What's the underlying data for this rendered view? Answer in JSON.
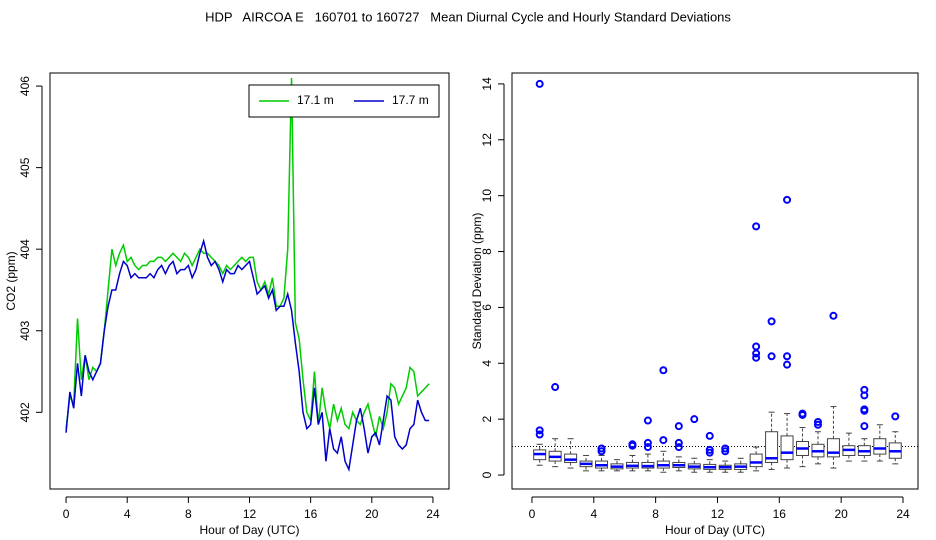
{
  "title": "HDP   AIRCOA E   160701 to 160727   Mean Diurnal Cycle and Hourly Standard Deviations",
  "chart_data": [
    {
      "type": "line",
      "xlabel": "Hour of Day (UTC)",
      "ylabel": "CO2 (ppm)",
      "xlim": [
        -1.05,
        25.05
      ],
      "ylim": [
        401.06,
        406.16
      ],
      "xticks": [
        0,
        4,
        8,
        12,
        16,
        20,
        24
      ],
      "yticks": [
        402,
        403,
        404,
        405,
        406
      ],
      "legend": "top-right",
      "x": [
        0,
        0.25,
        0.5,
        0.75,
        1,
        1.25,
        1.5,
        1.75,
        2,
        2.25,
        2.5,
        2.75,
        3,
        3.25,
        3.5,
        3.75,
        4,
        4.25,
        4.5,
        4.75,
        5,
        5.25,
        5.5,
        5.75,
        6,
        6.25,
        6.5,
        6.75,
        7,
        7.25,
        7.5,
        7.75,
        8,
        8.25,
        8.5,
        8.75,
        9,
        9.25,
        9.5,
        9.75,
        10,
        10.25,
        10.5,
        10.75,
        11,
        11.25,
        11.5,
        11.75,
        12,
        12.25,
        12.5,
        12.75,
        13,
        13.25,
        13.5,
        13.75,
        14,
        14.25,
        14.5,
        14.75,
        15,
        15.25,
        15.5,
        15.75,
        16,
        16.25,
        16.5,
        16.75,
        17,
        17.25,
        17.5,
        17.75,
        18,
        18.25,
        18.5,
        18.75,
        19,
        19.25,
        19.5,
        19.75,
        20,
        20.25,
        20.5,
        20.75,
        21,
        21.25,
        21.5,
        21.75,
        22,
        22.25,
        22.5,
        22.75,
        23,
        23.25,
        23.5,
        23.75
      ],
      "series": [
        {
          "name": "17.1 m",
          "color": "#00cc00",
          "values": [
            401.8,
            402.2,
            402.1,
            403.15,
            402.4,
            402.7,
            402.4,
            402.55,
            402.5,
            402.6,
            403.0,
            403.5,
            404.0,
            403.8,
            403.95,
            404.05,
            403.85,
            403.9,
            403.8,
            403.75,
            403.8,
            403.8,
            403.85,
            403.85,
            403.9,
            403.9,
            403.85,
            403.9,
            403.95,
            403.9,
            403.85,
            403.95,
            403.9,
            403.8,
            403.9,
            404.0,
            403.95,
            403.95,
            403.9,
            403.85,
            403.8,
            403.7,
            403.8,
            403.75,
            403.8,
            403.85,
            403.9,
            403.85,
            403.9,
            403.9,
            403.6,
            403.5,
            403.6,
            403.45,
            403.65,
            403.3,
            403.3,
            403.4,
            404.0,
            406.1,
            403.1,
            402.9,
            402.4,
            402.0,
            401.9,
            402.5,
            401.85,
            402.3,
            402.0,
            401.8,
            402.1,
            401.9,
            402.05,
            401.85,
            401.8,
            402.0,
            401.9,
            401.85,
            402.0,
            402.1,
            401.9,
            401.7,
            401.95,
            401.8,
            402.0,
            402.35,
            402.3,
            402.1,
            402.2,
            402.3,
            402.55,
            402.5,
            402.2,
            402.25,
            402.3,
            402.35
          ]
        },
        {
          "name": "17.7 m",
          "color": "#0000cc",
          "values": [
            401.75,
            402.25,
            402.05,
            402.6,
            402.2,
            402.7,
            402.5,
            402.4,
            402.5,
            402.6,
            403.0,
            403.3,
            403.5,
            403.5,
            403.7,
            403.85,
            403.8,
            403.65,
            403.7,
            403.65,
            403.65,
            403.65,
            403.7,
            403.65,
            403.75,
            403.8,
            403.7,
            403.8,
            403.85,
            403.7,
            403.75,
            403.75,
            403.8,
            403.65,
            403.75,
            403.95,
            404.1,
            403.9,
            403.8,
            403.85,
            403.75,
            403.6,
            403.75,
            403.7,
            403.7,
            403.8,
            403.75,
            403.8,
            403.85,
            403.65,
            403.45,
            403.5,
            403.55,
            403.4,
            403.5,
            403.25,
            403.3,
            403.3,
            403.45,
            403.25,
            402.85,
            402.5,
            402.0,
            401.8,
            401.85,
            402.3,
            401.85,
            402.0,
            401.4,
            401.8,
            401.55,
            401.5,
            401.7,
            401.4,
            401.3,
            401.6,
            401.9,
            402.05,
            401.8,
            401.5,
            401.7,
            401.75,
            401.6,
            401.9,
            402.2,
            402.15,
            401.7,
            401.6,
            401.55,
            401.6,
            401.8,
            401.85,
            402.15,
            402.0,
            401.9,
            401.9
          ]
        }
      ]
    },
    {
      "type": "box",
      "xlabel": "Hour of Day (UTC)",
      "ylabel": "Standard Deviation (ppm)",
      "xlim": [
        -1.29,
        24.97
      ],
      "ylim": [
        -0.5,
        14.39
      ],
      "xticks": [
        0,
        4,
        8,
        12,
        16,
        20,
        24
      ],
      "yticks": [
        0,
        2,
        4,
        6,
        8,
        10,
        12,
        14
      ],
      "color": "#0000ff",
      "edgecolor": "#444444",
      "hline": 1.02,
      "boxes": [
        {
          "x": 0.5,
          "whislo": 0.35,
          "q1": 0.55,
          "med": 0.75,
          "q3": 0.9,
          "whishi": 1.1,
          "fliers": [
            1.45,
            1.6,
            14.0
          ]
        },
        {
          "x": 1.5,
          "whislo": 0.3,
          "q1": 0.5,
          "med": 0.65,
          "q3": 0.85,
          "whishi": 1.3,
          "fliers": [
            3.15
          ]
        },
        {
          "x": 2.5,
          "whislo": 0.25,
          "q1": 0.45,
          "med": 0.55,
          "q3": 0.75,
          "whishi": 1.3,
          "fliers": []
        },
        {
          "x": 3.5,
          "whislo": 0.15,
          "q1": 0.3,
          "med": 0.4,
          "q3": 0.5,
          "whishi": 0.7,
          "fliers": []
        },
        {
          "x": 4.5,
          "whislo": 0.15,
          "q1": 0.25,
          "med": 0.35,
          "q3": 0.5,
          "whishi": 0.7,
          "fliers": [
            0.85,
            0.95
          ]
        },
        {
          "x": 5.5,
          "whislo": 0.15,
          "q1": 0.22,
          "med": 0.3,
          "q3": 0.4,
          "whishi": 0.55,
          "fliers": []
        },
        {
          "x": 6.5,
          "whislo": 0.15,
          "q1": 0.25,
          "med": 0.33,
          "q3": 0.45,
          "whishi": 0.7,
          "fliers": [
            1.05,
            1.1
          ]
        },
        {
          "x": 7.5,
          "whislo": 0.15,
          "q1": 0.25,
          "med": 0.32,
          "q3": 0.45,
          "whishi": 0.75,
          "fliers": [
            1.0,
            1.15,
            1.95
          ]
        },
        {
          "x": 8.5,
          "whislo": 0.1,
          "q1": 0.25,
          "med": 0.35,
          "q3": 0.5,
          "whishi": 0.85,
          "fliers": [
            1.25,
            3.75
          ]
        },
        {
          "x": 9.5,
          "whislo": 0.15,
          "q1": 0.27,
          "med": 0.35,
          "q3": 0.45,
          "whishi": 0.65,
          "fliers": [
            1.0,
            1.15,
            1.75
          ]
        },
        {
          "x": 10.5,
          "whislo": 0.1,
          "q1": 0.22,
          "med": 0.3,
          "q3": 0.4,
          "whishi": 0.6,
          "fliers": [
            2.0
          ]
        },
        {
          "x": 11.5,
          "whislo": 0.1,
          "q1": 0.2,
          "med": 0.28,
          "q3": 0.38,
          "whishi": 0.55,
          "fliers": [
            0.8,
            0.9,
            1.4
          ]
        },
        {
          "x": 12.5,
          "whislo": 0.1,
          "q1": 0.2,
          "med": 0.28,
          "q3": 0.35,
          "whishi": 0.5,
          "fliers": [
            0.85,
            0.95
          ]
        },
        {
          "x": 13.5,
          "whislo": 0.1,
          "q1": 0.2,
          "med": 0.3,
          "q3": 0.4,
          "whishi": 0.6,
          "fliers": []
        },
        {
          "x": 14.5,
          "whislo": 0.15,
          "q1": 0.3,
          "med": 0.45,
          "q3": 0.75,
          "whishi": 1.0,
          "fliers": [
            4.2,
            4.35,
            4.6,
            8.9
          ]
        },
        {
          "x": 15.5,
          "whislo": 0.2,
          "q1": 0.45,
          "med": 0.6,
          "q3": 1.55,
          "whishi": 2.25,
          "fliers": [
            4.25,
            5.5
          ]
        },
        {
          "x": 16.5,
          "whislo": 0.25,
          "q1": 0.55,
          "med": 0.8,
          "q3": 1.4,
          "whishi": 2.2,
          "fliers": [
            3.95,
            4.25,
            9.85
          ]
        },
        {
          "x": 17.5,
          "whislo": 0.3,
          "q1": 0.7,
          "med": 0.95,
          "q3": 1.2,
          "whishi": 1.7,
          "fliers": [
            2.15,
            2.2
          ]
        },
        {
          "x": 18.5,
          "whislo": 0.4,
          "q1": 0.65,
          "med": 0.85,
          "q3": 1.1,
          "whishi": 1.55,
          "fliers": [
            1.8,
            1.9
          ]
        },
        {
          "x": 19.5,
          "whislo": 0.25,
          "q1": 0.65,
          "med": 0.8,
          "q3": 1.3,
          "whishi": 2.45,
          "fliers": [
            5.7
          ]
        },
        {
          "x": 20.5,
          "whislo": 0.5,
          "q1": 0.7,
          "med": 0.9,
          "q3": 1.05,
          "whishi": 1.5,
          "fliers": []
        },
        {
          "x": 21.5,
          "whislo": 0.5,
          "q1": 0.7,
          "med": 0.85,
          "q3": 1.05,
          "whishi": 1.3,
          "fliers": [
            1.75,
            2.3,
            2.35,
            2.85,
            3.05
          ]
        },
        {
          "x": 22.5,
          "whislo": 0.5,
          "q1": 0.75,
          "med": 0.95,
          "q3": 1.3,
          "whishi": 1.8,
          "fliers": []
        },
        {
          "x": 23.5,
          "whislo": 0.4,
          "q1": 0.6,
          "med": 0.85,
          "q3": 1.15,
          "whishi": 1.55,
          "fliers": [
            2.1
          ]
        }
      ]
    }
  ]
}
